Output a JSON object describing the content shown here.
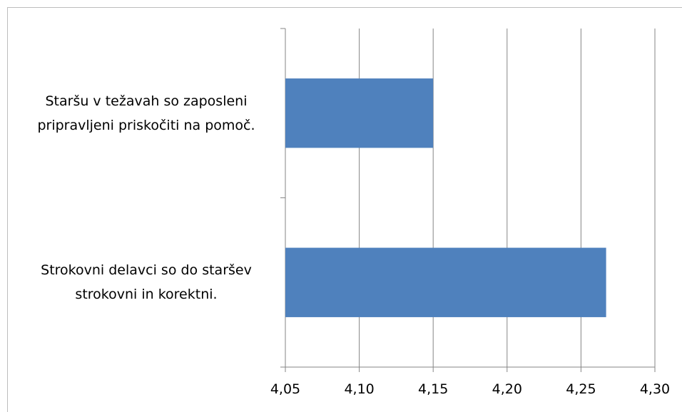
{
  "chart_data": {
    "type": "bar",
    "orientation": "horizontal",
    "categories": [
      "Staršu v težavah so zaposleni pripravljeni priskočiti na pomoč.",
      "Strokovni delavci so do staršev strokovni in korektni."
    ],
    "values": [
      4.15,
      4.267
    ],
    "color": "#4f81bd",
    "xlim": [
      4.05,
      4.3
    ],
    "xticks": [
      {
        "value": 4.05,
        "label": "4,05"
      },
      {
        "value": 4.1,
        "label": "4,10"
      },
      {
        "value": 4.15,
        "label": "4,15"
      },
      {
        "value": 4.2,
        "label": "4,20"
      },
      {
        "value": 4.25,
        "label": "4,25"
      },
      {
        "value": 4.3,
        "label": "4,30"
      }
    ],
    "grid": true
  }
}
